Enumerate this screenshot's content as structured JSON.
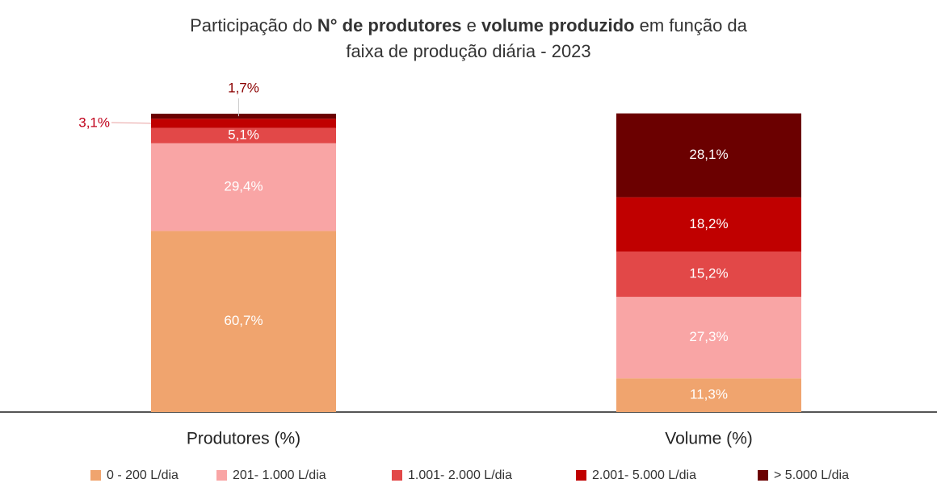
{
  "chart_data": {
    "type": "stacked_bar",
    "title": [
      "Participação do ",
      "N° de produtores",
      " e ",
      "volume produzido",
      " em função da",
      "faixa de produção diária - 2023"
    ],
    "title_bold": [
      false,
      true,
      false,
      true,
      false,
      false
    ],
    "categories": [
      "Produtores (%)",
      "Volume (%)"
    ],
    "ylim": [
      0,
      100
    ],
    "series": [
      {
        "name": "0 - 200 L/dia",
        "color": "#f0a46e",
        "values": [
          60.7,
          11.3
        ],
        "value_labels": [
          "60,7%",
          "11,3%"
        ]
      },
      {
        "name": "201- 1.000 L/dia",
        "color": "#f9a5a5",
        "values": [
          29.4,
          27.3
        ],
        "value_labels": [
          "29,4%",
          "27,3%"
        ]
      },
      {
        "name": "1.001- 2.000 L/dia",
        "color": "#e24848",
        "values": [
          5.1,
          15.2
        ],
        "value_labels": [
          "5,1%",
          "15,2%"
        ]
      },
      {
        "name": "2.001- 5.000 L/dia",
        "color": "#c00000",
        "values": [
          3.1,
          18.2
        ],
        "value_labels": [
          "3,1%",
          "18,2%"
        ]
      },
      {
        "name": "> 5.000 L/dia",
        "color": "#6b0000",
        "values": [
          1.7,
          28.1
        ],
        "value_labels": [
          "1,7%",
          "28,1%"
        ]
      }
    ],
    "legend": "bottom"
  }
}
